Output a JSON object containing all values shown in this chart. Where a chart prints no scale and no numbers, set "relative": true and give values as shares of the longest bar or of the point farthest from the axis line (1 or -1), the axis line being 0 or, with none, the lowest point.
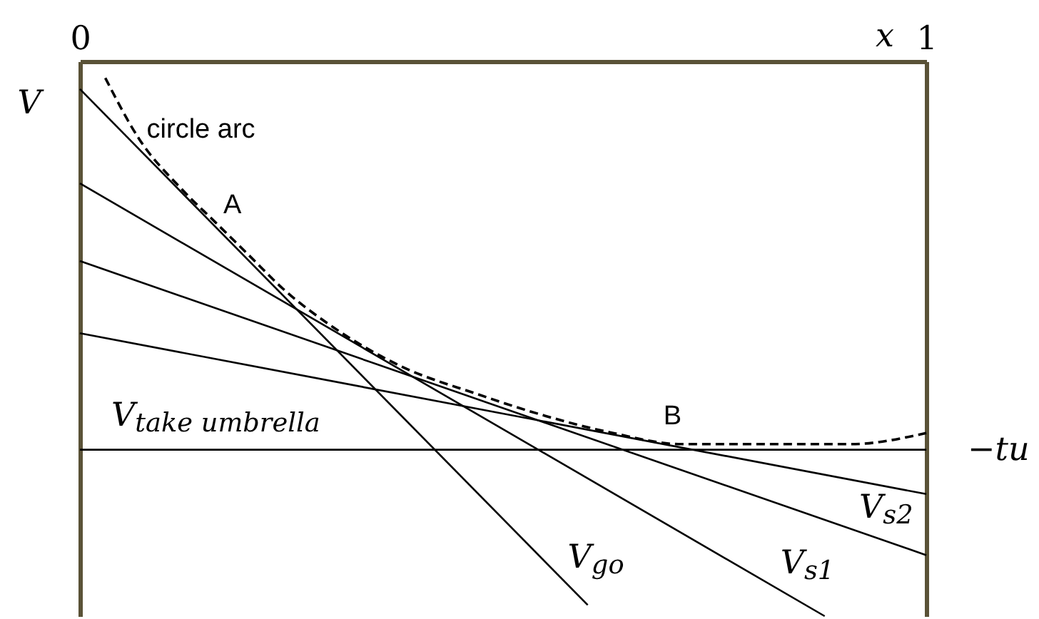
{
  "chart_data": {
    "type": "line",
    "relative": true,
    "xlabel": "x",
    "ylabel": "V",
    "xlim": [
      0,
      1
    ],
    "xticks": [
      0,
      1
    ],
    "series": [
      {
        "name": "V$_{go}$",
        "color": "#000000",
        "x": [
          0,
          0.6
        ],
        "values": [
          -0.05,
          -0.98
        ]
      },
      {
        "name": "V$_{s1}$",
        "color": "#000000",
        "x": [
          0,
          0.88
        ],
        "values": [
          -0.22,
          -1
        ]
      },
      {
        "name": "V$_{s2}$",
        "color": "#000000",
        "x": [
          0,
          1
        ],
        "values": [
          -0.36,
          -0.89
        ]
      },
      {
        "color": "#000000",
        "x": [
          0,
          1
        ],
        "values": [
          -0.49,
          -0.78
        ]
      },
      {
        "name": "V$_{take umbrella}$",
        "color": "#000000",
        "x": [
          0,
          1
        ],
        "values": [
          -0.7,
          -0.7
        ]
      },
      {
        "name": "circle arc",
        "color": "#000000",
        "line_style": "dashed",
        "x": [
          0.03,
          0.07,
          0.12,
          0.16,
          0.2,
          0.24,
          0.3,
          0.38,
          0.47,
          0.53,
          0.63,
          0.71,
          0.79,
          0.91,
          1
        ],
        "values": [
          -0.03,
          -0.14,
          -0.23,
          -0.29,
          -0.35,
          -0.41,
          -0.48,
          -0.55,
          -0.6,
          -0.63,
          -0.67,
          -0.69,
          -0.69,
          -0.69,
          -0.67
        ]
      }
    ],
    "annotations": [
      {
        "text": "A",
        "x": 0.16,
        "y": -0.3
      },
      {
        "text": "B",
        "x": 0.68,
        "y": -0.68
      },
      {
        "text": "−tu",
        "x": 1,
        "y": -0.7
      }
    ]
  }
}
